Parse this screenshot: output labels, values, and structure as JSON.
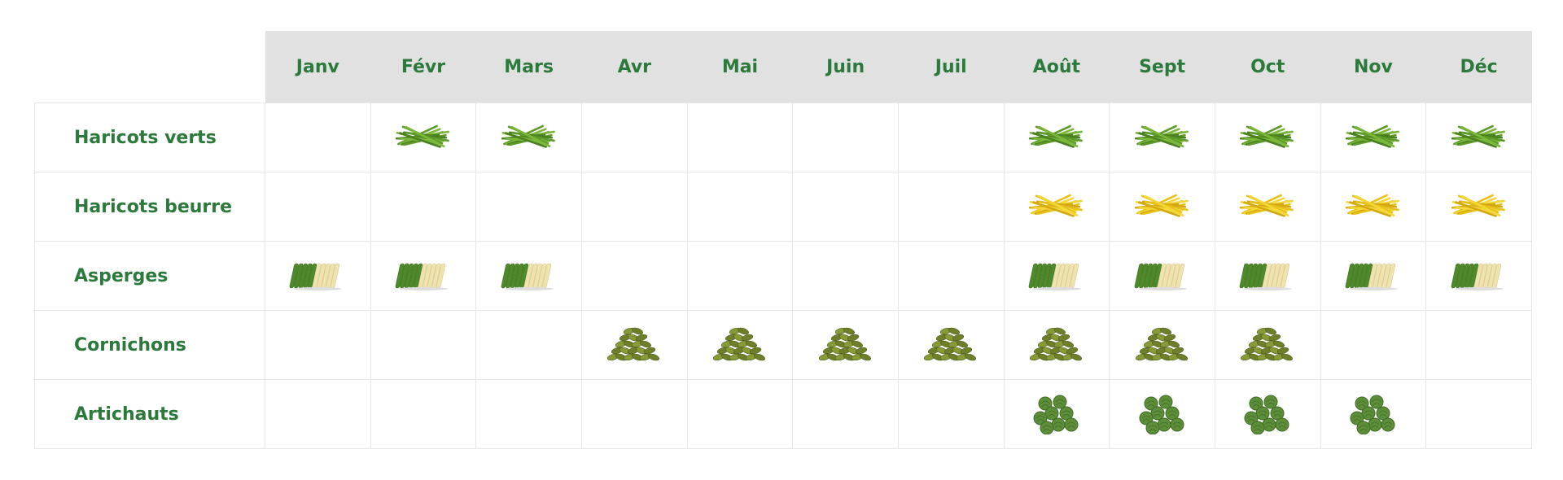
{
  "months": [
    "Janv",
    "Févr",
    "Mars",
    "Avr",
    "Mai",
    "Juin",
    "Juil",
    "Août",
    "Sept",
    "Oct",
    "Nov",
    "Déc"
  ],
  "rows": [
    {
      "label": "Haricots verts",
      "icon": "green-beans-icon",
      "available": [
        false,
        true,
        true,
        false,
        false,
        false,
        false,
        true,
        true,
        true,
        true,
        true
      ]
    },
    {
      "label": "Haricots beurre",
      "icon": "yellow-beans-icon",
      "available": [
        false,
        false,
        false,
        false,
        false,
        false,
        false,
        true,
        true,
        true,
        true,
        true
      ]
    },
    {
      "label": "Asperges",
      "icon": "asparagus-icon",
      "available": [
        true,
        true,
        true,
        false,
        false,
        false,
        false,
        true,
        true,
        true,
        true,
        true
      ]
    },
    {
      "label": "Cornichons",
      "icon": "gherkins-icon",
      "available": [
        false,
        false,
        false,
        true,
        true,
        true,
        true,
        true,
        true,
        true,
        false,
        false
      ]
    },
    {
      "label": "Artichauts",
      "icon": "artichokes-icon",
      "available": [
        false,
        false,
        false,
        false,
        false,
        false,
        false,
        true,
        true,
        true,
        true,
        false
      ]
    }
  ],
  "colors": {
    "text": "#2b7a3b",
    "header_bg": "#e1e1e1",
    "grid": "#e6e6e6"
  }
}
